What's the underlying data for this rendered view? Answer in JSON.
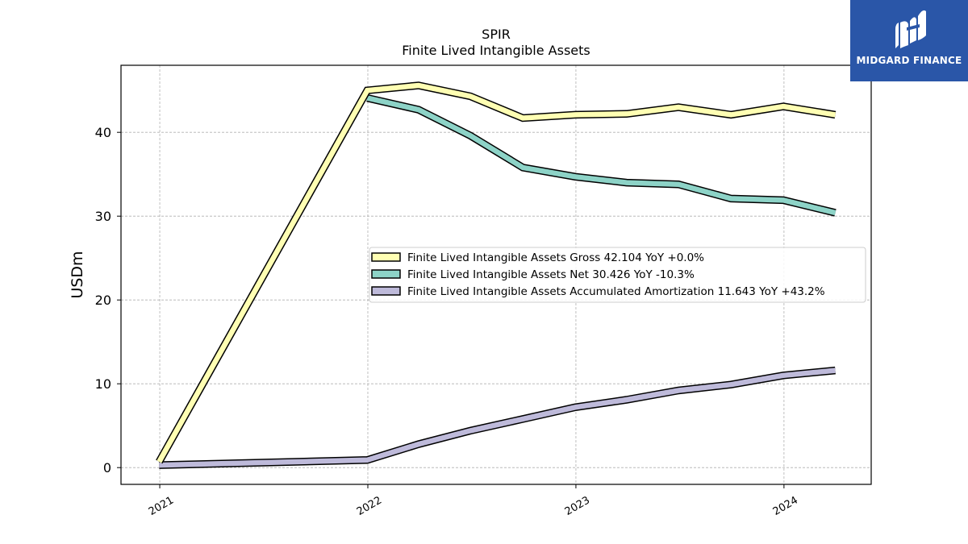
{
  "chart_data": {
    "type": "line",
    "title": "SPIR",
    "subtitle": "Finite Lived Intangible Assets",
    "ylabel": "USDm",
    "xlabel": "",
    "x_ticks": [
      "2021",
      "2022",
      "2023",
      "2024"
    ],
    "y_ticks": [
      "0",
      "10",
      "20",
      "30",
      "40"
    ],
    "ylim": [
      -2,
      48
    ],
    "grid": true,
    "legend_position": "center-right",
    "series": [
      {
        "name": "Finite Lived Intangible Assets Gross  42.104 YoY +0.0%",
        "color": "#ffffb3",
        "x": [
          "2020-12-31",
          "2021-12-31",
          "2022-03-31",
          "2022-06-30",
          "2022-09-30",
          "2022-12-31",
          "2023-03-31",
          "2023-06-30",
          "2023-09-30",
          "2023-12-31",
          "2024-03-31"
        ],
        "values": [
          0.7,
          45.0,
          45.6,
          44.3,
          41.7,
          42.1,
          42.2,
          43.0,
          42.1,
          43.1,
          42.1
        ]
      },
      {
        "name": "Finite Lived Intangible Assets Net  30.426 YoY -10.3%",
        "color": "#8dd3c7",
        "x": [
          "2021-12-31",
          "2022-03-31",
          "2022-06-30",
          "2022-09-30",
          "2022-12-31",
          "2023-03-31",
          "2023-06-30",
          "2023-09-30",
          "2023-12-31",
          "2024-03-31"
        ],
        "values": [
          44.1,
          42.7,
          39.6,
          35.8,
          34.7,
          34.0,
          33.8,
          32.1,
          31.9,
          30.4
        ]
      },
      {
        "name": "Finite Lived Intangible Assets Accumulated Amortization  11.643 YoY +43.2%",
        "color": "#bebada",
        "x": [
          "2020-12-31",
          "2021-12-31",
          "2022-03-31",
          "2022-06-30",
          "2022-09-30",
          "2022-12-31",
          "2023-03-31",
          "2023-06-30",
          "2023-09-30",
          "2023-12-31",
          "2024-03-31"
        ],
        "values": [
          0.3,
          0.9,
          2.8,
          4.4,
          5.8,
          7.2,
          8.1,
          9.2,
          9.9,
          11.0,
          11.6
        ]
      }
    ]
  },
  "logo": {
    "text": "MIDGARD FINANCE",
    "background": "#2a56a8"
  }
}
